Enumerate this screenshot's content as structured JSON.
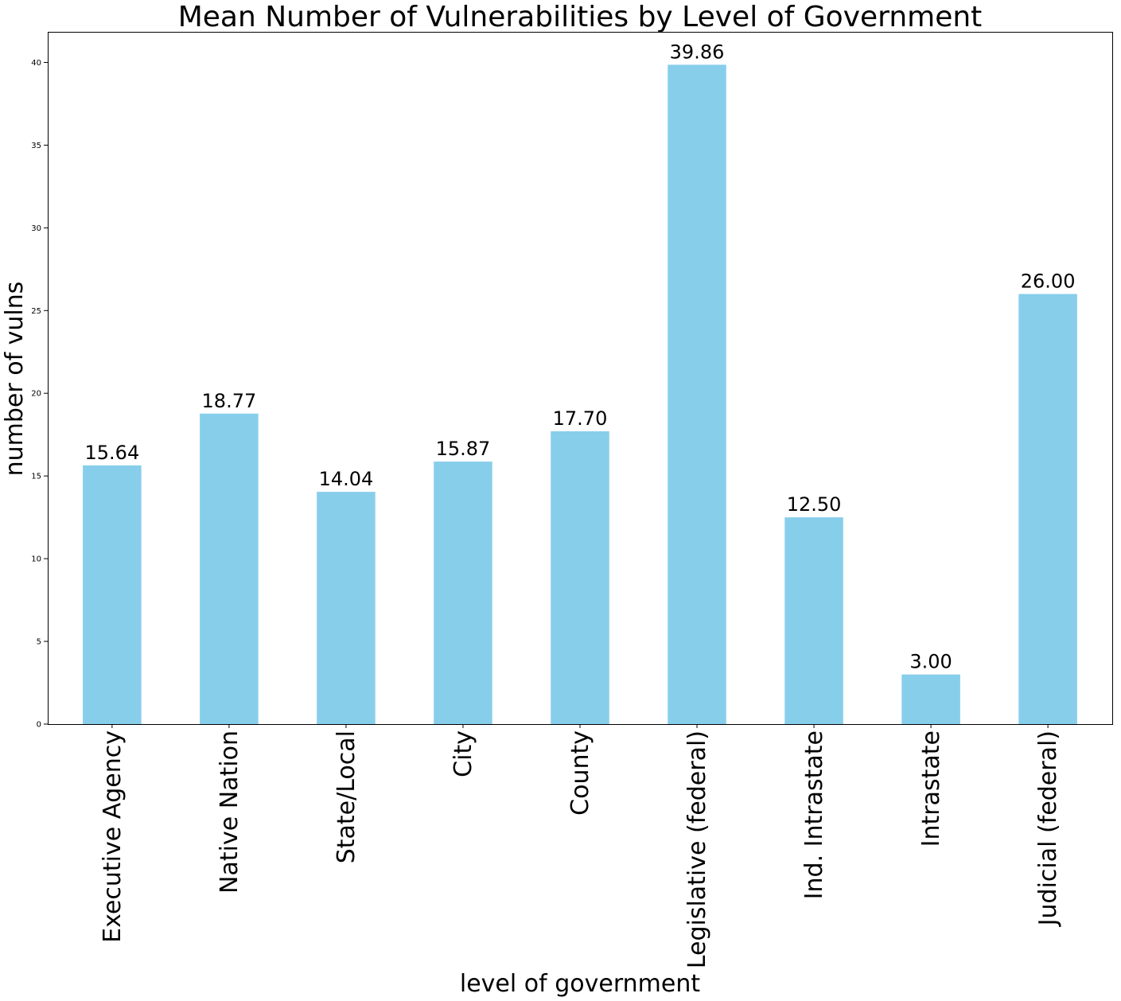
{
  "chart_data": {
    "type": "bar",
    "title": "Mean Number of Vulnerabilities by Level of Government",
    "xlabel": "level of government",
    "ylabel": "number of vulns",
    "categories": [
      "Executive Agency",
      "Native Nation",
      "State/Local",
      "City",
      "County",
      "Legislative (federal)",
      "Ind. Intrastate",
      "Intrastate",
      "Judicial (federal)"
    ],
    "values": [
      15.64,
      18.77,
      14.04,
      15.87,
      17.7,
      39.86,
      12.5,
      3.0,
      26.0
    ],
    "data_labels": [
      "15.64",
      "18.77",
      "14.04",
      "15.87",
      "17.70",
      "39.86",
      "12.50",
      "3.00",
      "26.00"
    ],
    "yticks": [
      0,
      5,
      10,
      15,
      20,
      25,
      30,
      35,
      40
    ],
    "ylim": [
      0,
      41.85
    ],
    "grid": false,
    "legend": "none",
    "bar_color": "#87ceeb"
  }
}
